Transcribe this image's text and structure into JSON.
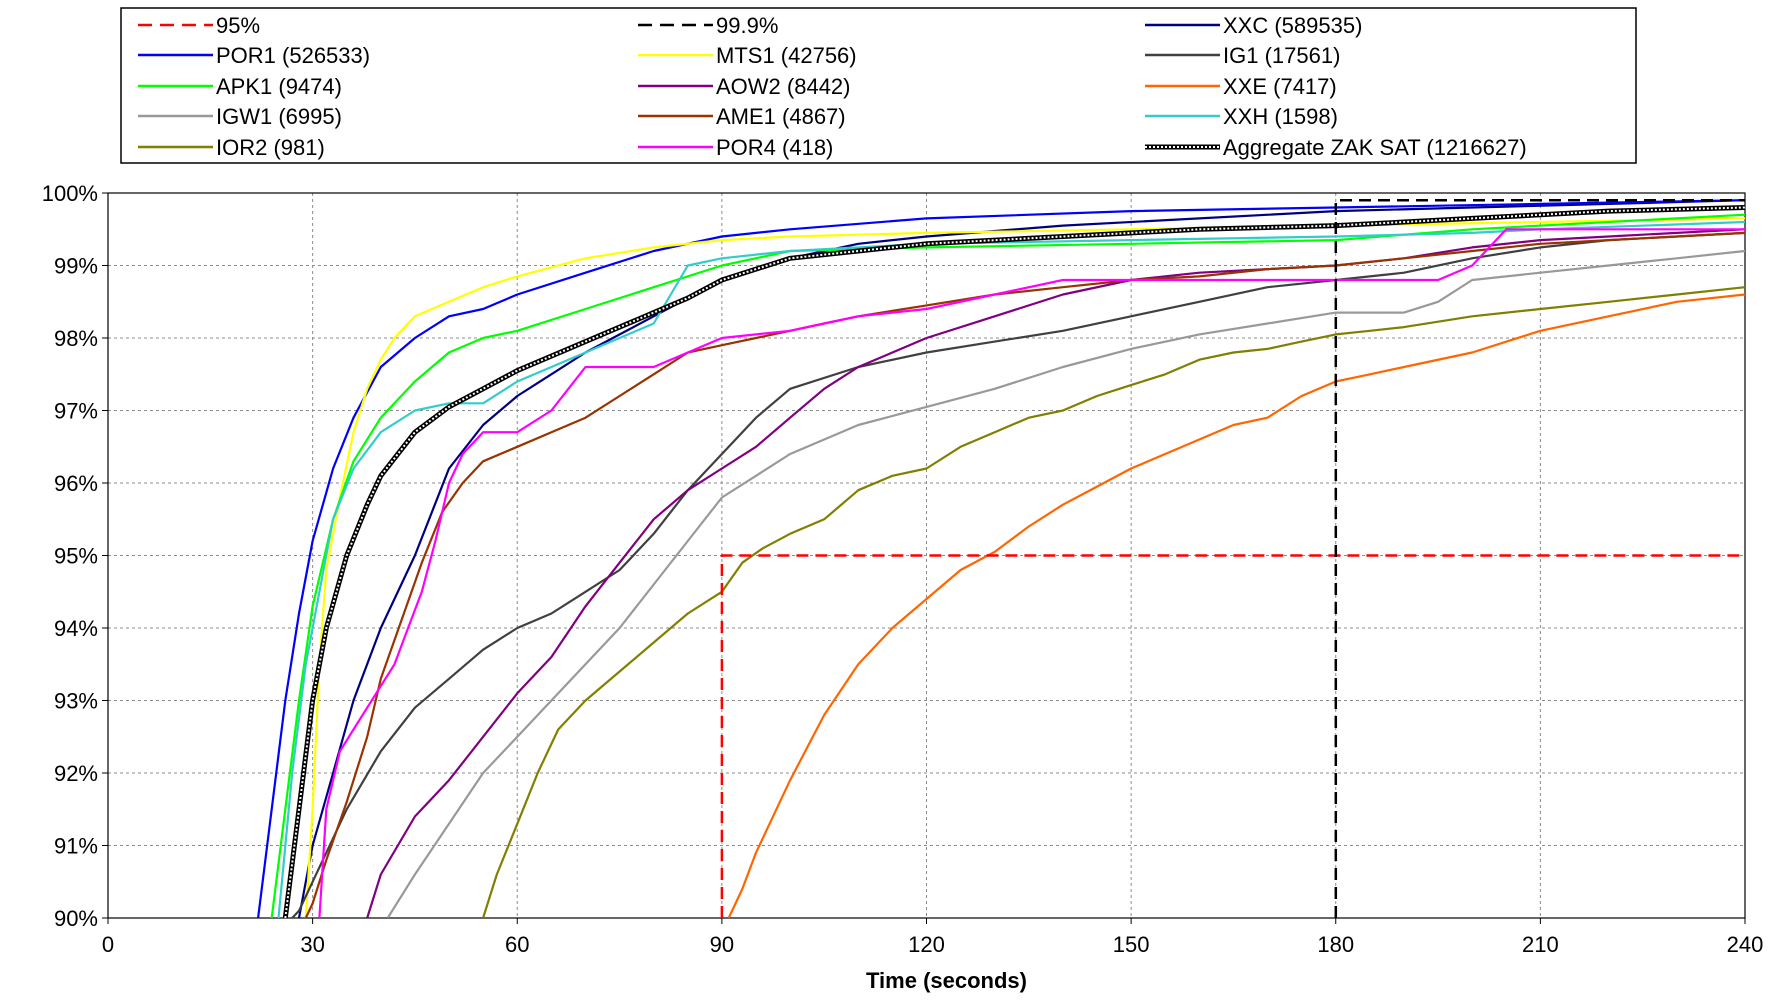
{
  "chart_data": {
    "type": "line",
    "title": "",
    "xlabel": "Time (seconds)",
    "ylabel": "",
    "xlim": [
      0,
      240
    ],
    "ylim": [
      90,
      100
    ],
    "x_ticks": [
      "0",
      "30",
      "60",
      "90",
      "120",
      "150",
      "180",
      "210",
      "240"
    ],
    "y_ticks": [
      "90%",
      "91%",
      "92%",
      "93%",
      "94%",
      "95%",
      "96%",
      "97%",
      "98%",
      "99%",
      "100%"
    ],
    "grid": true,
    "legend_position": "top",
    "series": [
      {
        "name": "95%",
        "color": "#ff0000",
        "style": "dashed",
        "x": [
          90,
          90,
          240
        ],
        "y": [
          90,
          95,
          95
        ]
      },
      {
        "name": "99.9%",
        "color": "#000000",
        "style": "dashed",
        "x": [
          180,
          180,
          240
        ],
        "y": [
          90,
          99.9,
          99.9
        ]
      },
      {
        "name": "XXC (589535)",
        "color": "#000080",
        "style": "solid",
        "x": [
          28,
          30,
          33,
          36,
          40,
          45,
          50,
          55,
          60,
          70,
          80,
          90,
          100,
          110,
          120,
          140,
          160,
          180,
          200,
          220,
          240
        ],
        "y": [
          90,
          91,
          92,
          93,
          94,
          95,
          96.2,
          96.8,
          97.2,
          97.8,
          98.3,
          98.8,
          99.1,
          99.3,
          99.4,
          99.55,
          99.65,
          99.75,
          99.8,
          99.85,
          99.9
        ]
      },
      {
        "name": "POR1 (526533)",
        "color": "#0000ff",
        "style": "solid",
        "x": [
          22,
          24,
          26,
          28,
          30,
          33,
          36,
          40,
          45,
          50,
          55,
          60,
          70,
          80,
          90,
          100,
          120,
          150,
          180,
          210,
          240
        ],
        "y": [
          90,
          91.5,
          93,
          94.2,
          95.2,
          96.2,
          96.9,
          97.6,
          98,
          98.3,
          98.4,
          98.6,
          98.9,
          99.2,
          99.4,
          99.5,
          99.65,
          99.75,
          99.8,
          99.85,
          99.9
        ]
      },
      {
        "name": "MTS1 (42756)",
        "color": "#ffff00",
        "style": "solid",
        "x": [
          29,
          30,
          31,
          32,
          34,
          36,
          38,
          40,
          42,
          45,
          50,
          55,
          60,
          70,
          80,
          90,
          100,
          120,
          150,
          180,
          210,
          240
        ],
        "y": [
          90,
          91.5,
          93.5,
          94.8,
          95.8,
          96.7,
          97.3,
          97.7,
          98,
          98.3,
          98.5,
          98.7,
          98.85,
          99.1,
          99.25,
          99.35,
          99.4,
          99.45,
          99.5,
          99.55,
          99.6,
          99.65
        ]
      },
      {
        "name": "IG1 (17561)",
        "color": "#404040",
        "style": "solid",
        "x": [
          27,
          28,
          30,
          32,
          35,
          40,
          45,
          50,
          55,
          60,
          65,
          70,
          75,
          80,
          85,
          90,
          95,
          100,
          110,
          120,
          130,
          140,
          150,
          160,
          170,
          180,
          190,
          200,
          210,
          220,
          230,
          240
        ],
        "y": [
          90,
          90.1,
          90.5,
          90.9,
          91.5,
          92.3,
          92.9,
          93.3,
          93.7,
          94,
          94.2,
          94.5,
          94.8,
          95.3,
          95.9,
          96.4,
          96.9,
          97.3,
          97.6,
          97.8,
          97.95,
          98.1,
          98.3,
          98.5,
          98.7,
          98.8,
          98.9,
          99.1,
          99.25,
          99.35,
          99.4,
          99.45
        ]
      },
      {
        "name": "APK1 (9474)",
        "color": "#00ff00",
        "style": "solid",
        "x": [
          24,
          26,
          28,
          30,
          33,
          36,
          40,
          45,
          50,
          55,
          60,
          70,
          80,
          90,
          100,
          120,
          150,
          180,
          200,
          240
        ],
        "y": [
          90,
          91.5,
          93,
          94.3,
          95.5,
          96.3,
          96.9,
          97.4,
          97.8,
          98,
          98.1,
          98.4,
          98.7,
          99.0,
          99.2,
          99.25,
          99.3,
          99.35,
          99.5,
          99.7
        ]
      },
      {
        "name": "AOW2 (8442)",
        "color": "#800080",
        "style": "solid",
        "x": [
          38,
          40,
          45,
          50,
          55,
          60,
          65,
          70,
          75,
          80,
          85,
          90,
          95,
          100,
          105,
          110,
          115,
          120,
          130,
          140,
          150,
          160,
          170,
          180,
          190,
          200,
          210,
          220,
          230,
          240
        ],
        "y": [
          90,
          90.6,
          91.4,
          91.9,
          92.5,
          93.1,
          93.6,
          94.3,
          94.9,
          95.5,
          95.9,
          96.2,
          96.5,
          96.9,
          97.3,
          97.6,
          97.8,
          98.0,
          98.3,
          98.6,
          98.8,
          98.9,
          98.95,
          99.0,
          99.1,
          99.25,
          99.35,
          99.4,
          99.45,
          99.5
        ]
      },
      {
        "name": "XXE (7417)",
        "color": "#ff6600",
        "style": "solid",
        "x": [
          91,
          93,
          95,
          100,
          105,
          110,
          115,
          120,
          125,
          130,
          135,
          140,
          145,
          150,
          155,
          160,
          165,
          170,
          175,
          180,
          185,
          190,
          200,
          210,
          220,
          230,
          240
        ],
        "y": [
          90,
          90.4,
          90.9,
          91.9,
          92.8,
          93.5,
          94.0,
          94.4,
          94.8,
          95.05,
          95.4,
          95.7,
          95.95,
          96.2,
          96.4,
          96.6,
          96.8,
          96.9,
          97.2,
          97.4,
          97.5,
          97.6,
          97.8,
          98.1,
          98.3,
          98.5,
          98.6
        ]
      },
      {
        "name": "IGW1 (6995)",
        "color": "#999999",
        "style": "solid",
        "x": [
          41,
          45,
          50,
          55,
          60,
          65,
          70,
          75,
          80,
          85,
          90,
          95,
          100,
          110,
          120,
          130,
          140,
          150,
          160,
          170,
          180,
          190,
          195,
          200,
          210,
          220,
          230,
          240
        ],
        "y": [
          90,
          90.6,
          91.3,
          92.0,
          92.5,
          93.0,
          93.5,
          94.0,
          94.6,
          95.2,
          95.8,
          96.1,
          96.4,
          96.8,
          97.05,
          97.3,
          97.6,
          97.85,
          98.05,
          98.2,
          98.35,
          98.35,
          98.5,
          98.8,
          98.9,
          99.0,
          99.1,
          99.2
        ]
      },
      {
        "name": "AME1 (4867)",
        "color": "#993300",
        "style": "solid",
        "x": [
          29,
          30,
          32,
          35,
          38,
          40,
          43,
          46,
          49,
          52,
          55,
          60,
          65,
          70,
          75,
          80,
          85,
          90,
          95,
          100,
          105,
          110,
          120,
          130,
          140,
          150,
          160,
          170,
          180,
          190,
          200,
          210,
          220,
          230,
          240
        ],
        "y": [
          90,
          90.2,
          90.8,
          91.6,
          92.5,
          93.3,
          94.1,
          94.9,
          95.6,
          96.0,
          96.3,
          96.5,
          96.7,
          96.9,
          97.2,
          97.5,
          97.8,
          97.9,
          98.0,
          98.1,
          98.2,
          98.3,
          98.45,
          98.6,
          98.7,
          98.8,
          98.85,
          98.95,
          99.0,
          99.1,
          99.2,
          99.3,
          99.35,
          99.4,
          99.45
        ]
      },
      {
        "name": "XXH (1598)",
        "color": "#33cccc",
        "style": "solid",
        "x": [
          25,
          27,
          29,
          31,
          33,
          36,
          40,
          45,
          50,
          55,
          60,
          65,
          70,
          75,
          80,
          85,
          90,
          100,
          120,
          150,
          180,
          200,
          210,
          240
        ],
        "y": [
          90,
          92,
          93.5,
          94.5,
          95.5,
          96.2,
          96.7,
          97.0,
          97.1,
          97.1,
          97.4,
          97.6,
          97.8,
          98.0,
          98.2,
          99.0,
          99.1,
          99.2,
          99.3,
          99.35,
          99.4,
          99.45,
          99.5,
          99.6
        ]
      },
      {
        "name": "IOR2 (981)",
        "color": "#808000",
        "style": "solid",
        "x": [
          55,
          57,
          60,
          63,
          66,
          70,
          75,
          80,
          85,
          90,
          93,
          96,
          100,
          105,
          110,
          115,
          120,
          125,
          130,
          135,
          140,
          145,
          150,
          155,
          160,
          165,
          170,
          175,
          180,
          185,
          190,
          200,
          210,
          220,
          230,
          240
        ],
        "y": [
          90,
          90.6,
          91.3,
          92.0,
          92.6,
          93.0,
          93.4,
          93.8,
          94.2,
          94.5,
          94.9,
          95.1,
          95.3,
          95.5,
          95.9,
          96.1,
          96.2,
          96.5,
          96.7,
          96.9,
          97.0,
          97.2,
          97.35,
          97.5,
          97.7,
          97.8,
          97.85,
          97.95,
          98.05,
          98.1,
          98.15,
          98.3,
          98.4,
          98.5,
          98.6,
          98.7
        ]
      },
      {
        "name": "POR4 (418)",
        "color": "#ff00ff",
        "style": "solid",
        "x": [
          31,
          32,
          34,
          36,
          38,
          40,
          42,
          44,
          46,
          48,
          50,
          52,
          55,
          60,
          65,
          70,
          72,
          80,
          85,
          90,
          100,
          105,
          110,
          120,
          130,
          140,
          150,
          170,
          190,
          195,
          200,
          205,
          210,
          220,
          240
        ],
        "y": [
          90,
          91.5,
          92.3,
          92.6,
          92.9,
          93.2,
          93.5,
          94.0,
          94.5,
          95.2,
          96.0,
          96.4,
          96.7,
          96.7,
          97.0,
          97.6,
          97.6,
          97.6,
          97.8,
          98.0,
          98.1,
          98.2,
          98.3,
          98.4,
          98.6,
          98.8,
          98.8,
          98.8,
          98.8,
          98.8,
          99.0,
          99.5,
          99.5,
          99.5,
          99.5
        ]
      },
      {
        "name": "Aggregate ZAK SAT (1216627)",
        "color": "#000000",
        "style": "dotted",
        "x": [
          26,
          28,
          30,
          32,
          35,
          38,
          40,
          45,
          50,
          55,
          60,
          65,
          70,
          75,
          80,
          85,
          90,
          95,
          100,
          110,
          120,
          140,
          160,
          180,
          200,
          220,
          240
        ],
        "y": [
          90,
          91.5,
          93,
          94,
          95,
          95.7,
          96.1,
          96.7,
          97.05,
          97.3,
          97.55,
          97.75,
          97.95,
          98.15,
          98.35,
          98.55,
          98.8,
          98.95,
          99.1,
          99.2,
          99.3,
          99.4,
          99.5,
          99.55,
          99.65,
          99.75,
          99.8
        ]
      }
    ]
  }
}
